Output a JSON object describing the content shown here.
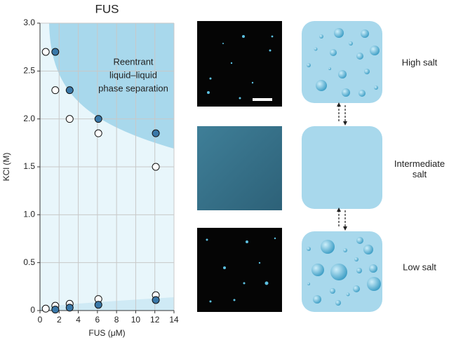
{
  "chart_data": {
    "type": "scatter",
    "title": "FUS",
    "xlabel": "FUS (μM)",
    "ylabel": "KCl (M)",
    "annotation": [
      "Reentrant",
      "liquid–liquid",
      "phase separation"
    ],
    "xlim": [
      0,
      14
    ],
    "ylim": [
      0,
      3
    ],
    "xticks": [
      0,
      2,
      4,
      6,
      8,
      10,
      12,
      14
    ],
    "yticks": [
      0,
      0.5,
      {
        "value": 1,
        "label": "1.0"
      },
      1.5,
      {
        "value": 2,
        "label": "2.0"
      },
      2.5,
      {
        "value": 3,
        "label": "3.0"
      }
    ],
    "grid": true,
    "series": [
      {
        "marker": "open",
        "color": "#ffffff",
        "x": [
          0.6,
          1.6,
          3.1,
          6.1,
          12.1,
          0.6,
          1.6,
          3.1,
          6.1,
          12.1
        ],
        "values": [
          2.7,
          2.3,
          2.0,
          1.85,
          1.5,
          0.02,
          0.05,
          0.07,
          0.12,
          0.16
        ]
      },
      {
        "marker": "filled",
        "color": "#3a78a8",
        "x": [
          1.6,
          3.1,
          6.1,
          12.1,
          1.6,
          3.1,
          6.1,
          12.1
        ],
        "values": [
          2.7,
          2.3,
          2.0,
          1.85,
          0.01,
          0.03,
          0.06,
          0.11
        ]
      }
    ]
  },
  "panels": {
    "labels": [
      "High salt",
      "Intermediate salt",
      "Low salt"
    ]
  }
}
